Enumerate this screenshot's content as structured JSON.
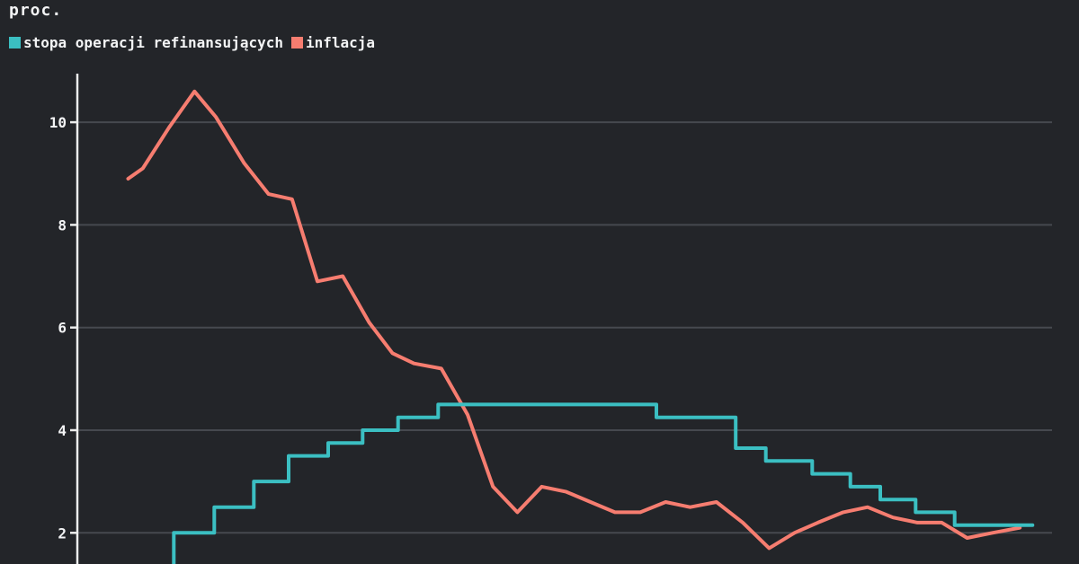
{
  "header": {
    "title": "proc."
  },
  "legend": {
    "items": [
      {
        "label": "stopa operacji refinansujących",
        "color": "#3bbfc2"
      },
      {
        "label": "inflacja",
        "color": "#f67d70"
      }
    ]
  },
  "colors": {
    "background": "#232529",
    "grid": "#46494f",
    "axis": "#eceded",
    "text": "#f3f4f5",
    "rate_line": "#3bbfc2",
    "inflation_line": "#f67d70"
  },
  "chart_data": {
    "type": "line",
    "title": "proc.",
    "xlabel": "",
    "ylabel": "proc.",
    "y_ticks": [
      10,
      8,
      6,
      4,
      2
    ],
    "ylim_visible": [
      1.4,
      10.95
    ],
    "grid": "horizontal",
    "legend_position": "top-left",
    "x_axis_tick_labels_visible": false,
    "x_unit": "percent of plot width (no x labels visible in image)",
    "series": [
      {
        "name": "inflacja",
        "color": "#f67d70",
        "style": "linear",
        "points": [
          [
            5.3,
            8.9
          ],
          [
            6.8,
            9.1
          ],
          [
            9.5,
            9.9
          ],
          [
            12.1,
            10.6
          ],
          [
            14.3,
            10.1
          ],
          [
            17.2,
            9.2
          ],
          [
            19.7,
            8.6
          ],
          [
            22.1,
            8.5
          ],
          [
            24.7,
            6.9
          ],
          [
            27.3,
            7.0
          ],
          [
            30.0,
            6.1
          ],
          [
            32.4,
            5.5
          ],
          [
            34.6,
            5.3
          ],
          [
            37.4,
            5.2
          ],
          [
            40.1,
            4.3
          ],
          [
            42.7,
            2.9
          ],
          [
            45.2,
            2.4
          ],
          [
            47.7,
            2.9
          ],
          [
            50.2,
            2.8
          ],
          [
            52.7,
            2.6
          ],
          [
            55.2,
            2.4
          ],
          [
            57.8,
            2.4
          ],
          [
            60.4,
            2.6
          ],
          [
            62.9,
            2.5
          ],
          [
            65.6,
            2.6
          ],
          [
            68.3,
            2.2
          ],
          [
            71.0,
            1.7
          ],
          [
            73.6,
            2.0
          ],
          [
            76.0,
            2.2
          ],
          [
            78.6,
            2.4
          ],
          [
            81.1,
            2.5
          ],
          [
            83.7,
            2.3
          ],
          [
            86.2,
            2.2
          ],
          [
            88.7,
            2.2
          ],
          [
            91.3,
            1.9
          ],
          [
            93.9,
            2.0
          ],
          [
            96.7,
            2.1
          ]
        ]
      },
      {
        "name": "stopa operacji refinansujących",
        "color": "#3bbfc2",
        "style": "step",
        "enter_value": 1.2,
        "end_x": 98.0,
        "steps": [
          [
            9.98,
            2.0
          ],
          [
            14.13,
            2.5
          ],
          [
            18.18,
            3.0
          ],
          [
            21.75,
            3.5
          ],
          [
            25.81,
            3.75
          ],
          [
            29.34,
            4.0
          ],
          [
            32.97,
            4.25
          ],
          [
            37.08,
            4.5
          ],
          [
            59.45,
            4.25
          ],
          [
            67.58,
            3.65
          ],
          [
            70.66,
            3.4
          ],
          [
            75.42,
            3.15
          ],
          [
            79.33,
            2.9
          ],
          [
            82.4,
            2.65
          ],
          [
            86.02,
            2.4
          ],
          [
            90.02,
            2.15
          ]
        ]
      }
    ]
  }
}
